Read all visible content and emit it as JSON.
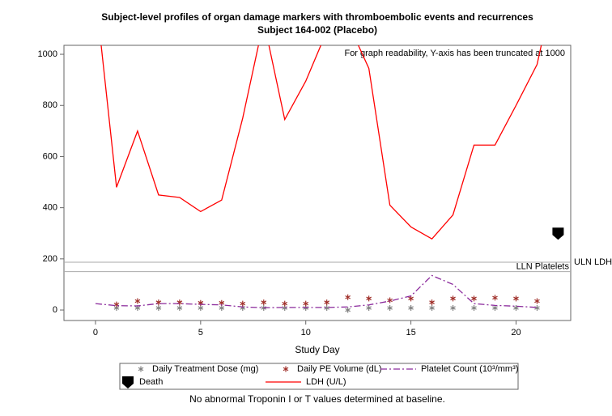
{
  "chart_data": {
    "type": "line",
    "title": "Subject-level profiles of organ damage markers with thromboembolic events and recurrences",
    "subtitle": "Subject 164-002  (Placebo)",
    "annotation": "For graph readability, Y-axis has been truncated at 1000",
    "x_label": "Study Day",
    "footnote": "No abnormal Troponin I or T values determined at baseline.",
    "x": [
      0,
      1,
      2,
      3,
      4,
      5,
      6,
      7,
      8,
      9,
      10,
      11,
      12,
      13,
      14,
      15,
      16,
      17,
      18,
      19,
      20,
      21,
      22
    ],
    "xlim": [
      -1.5,
      22.6
    ],
    "xticks": [
      0,
      5,
      10,
      15,
      20
    ],
    "ylim": [
      -41,
      1035
    ],
    "yticks": [
      0,
      200,
      400,
      600,
      800,
      1000
    ],
    "reflines": [
      {
        "value": 187,
        "label": "ULN LDH",
        "label_outside": true
      },
      {
        "value": 150,
        "label": "LLN Platelets",
        "label_outside": false
      }
    ],
    "series": [
      {
        "name": "Daily Treatment Dose (mg)",
        "color": "#808080",
        "style": "star",
        "values": [
          null,
          8,
          8,
          8,
          8,
          8,
          8,
          8,
          8,
          8,
          8,
          8,
          0,
          8,
          8,
          8,
          8,
          8,
          8,
          8,
          8,
          8,
          null
        ]
      },
      {
        "name": "Daily PE Volume (dL)",
        "color": "#a0302a",
        "style": "star",
        "values": [
          null,
          22,
          35,
          30,
          30,
          28,
          28,
          25,
          30,
          25,
          25,
          30,
          50,
          45,
          38,
          45,
          30,
          45,
          45,
          48,
          45,
          35,
          null
        ]
      },
      {
        "name": "Platelet Count (10³/mm³)",
        "color": "#8b2a9c",
        "style": "dashdot",
        "values": [
          25,
          17,
          16,
          25,
          25,
          22,
          20,
          12,
          9,
          10,
          10,
          10,
          12,
          20,
          35,
          55,
          135,
          100,
          25,
          18,
          15,
          10,
          null
        ]
      },
      {
        "name": "Death",
        "color": "#000000",
        "style": "death",
        "values": [
          null,
          null,
          null,
          null,
          null,
          null,
          null,
          null,
          null,
          null,
          null,
          null,
          null,
          null,
          null,
          null,
          null,
          null,
          null,
          null,
          null,
          null,
          300
        ]
      },
      {
        "name": "LDH (U/L)",
        "color": "#ff0000",
        "style": "line",
        "values": [
          1240,
          480,
          700,
          450,
          440,
          385,
          430,
          750,
          1130,
          745,
          895,
          1090,
          1125,
          945,
          410,
          325,
          278,
          372,
          645,
          645,
          800,
          960,
          1335
        ]
      }
    ]
  }
}
